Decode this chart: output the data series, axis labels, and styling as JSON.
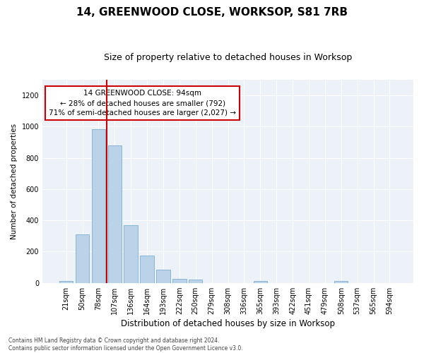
{
  "title": "14, GREENWOOD CLOSE, WORKSOP, S81 7RB",
  "subtitle": "Size of property relative to detached houses in Worksop",
  "xlabel": "Distribution of detached houses by size in Worksop",
  "ylabel": "Number of detached properties",
  "bar_color": "#bad3e8",
  "bar_edge_color": "#7aafd4",
  "categories": [
    "21sqm",
    "50sqm",
    "78sqm",
    "107sqm",
    "136sqm",
    "164sqm",
    "193sqm",
    "222sqm",
    "250sqm",
    "279sqm",
    "308sqm",
    "336sqm",
    "365sqm",
    "393sqm",
    "422sqm",
    "451sqm",
    "479sqm",
    "508sqm",
    "537sqm",
    "565sqm",
    "594sqm"
  ],
  "values": [
    12,
    310,
    985,
    880,
    370,
    175,
    85,
    27,
    20,
    0,
    0,
    0,
    12,
    0,
    0,
    0,
    0,
    12,
    0,
    0,
    0
  ],
  "ylim": [
    0,
    1300
  ],
  "yticks": [
    0,
    200,
    400,
    600,
    800,
    1000,
    1200
  ],
  "vline_x_index": 2,
  "vline_color": "#cc0000",
  "annotation_text": "14 GREENWOOD CLOSE: 94sqm\n← 28% of detached houses are smaller (792)\n71% of semi-detached houses are larger (2,027) →",
  "annotation_box_color": "#ffffff",
  "annotation_box_edge": "#cc0000",
  "footer_line1": "Contains HM Land Registry data © Crown copyright and database right 2024.",
  "footer_line2": "Contains public sector information licensed under the Open Government Licence v3.0.",
  "background_color": "#edf2f9",
  "grid_color": "#ffffff",
  "title_fontsize": 11,
  "subtitle_fontsize": 9
}
